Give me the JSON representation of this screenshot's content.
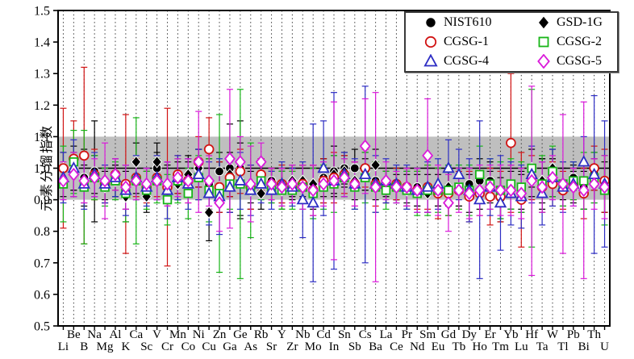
{
  "figure": {
    "type_label": "scatter-with-error-bars",
    "background": "#ffffff"
  },
  "chart_data": {
    "type": "scatter",
    "title": "",
    "xlabel": "",
    "ylabel": "元素分馏指数",
    "ylim": [
      0.5,
      1.5
    ],
    "yticks": [
      "0.5",
      "0.6",
      "0.7",
      "0.8",
      "0.9",
      "1.0",
      "1.1",
      "1.2",
      "1.3",
      "1.4",
      "1.5"
    ],
    "grid": "vertical-dotted",
    "reference_band": {
      "from": 0.9,
      "to": 1.1,
      "color": "#bfbfbf"
    },
    "reference_line": {
      "value": 1.0,
      "color": "#000000"
    },
    "legend_position": "top-right",
    "categories": [
      "Li",
      "Be",
      "B",
      "Na",
      "Mg",
      "Al",
      "K",
      "Ca",
      "Sc",
      "V",
      "Cr",
      "Mn",
      "Co",
      "Ni",
      "Cu",
      "Zn",
      "Ga",
      "Ge",
      "As",
      "Rb",
      "Sr",
      "Y",
      "Zr",
      "Nb",
      "Mo",
      "Cd",
      "In",
      "Sn",
      "Sb",
      "Cs",
      "Ba",
      "La",
      "Ce",
      "Pr",
      "Nd",
      "Sm",
      "Eu",
      "Gd",
      "Tb",
      "Dy",
      "Ho",
      "Er",
      "Tm",
      "Yb",
      "Lu",
      "Hf",
      "Ta",
      "W",
      "Tl",
      "Pb",
      "Bi",
      "Th",
      "U"
    ],
    "series": [
      {
        "name": "NIST610",
        "marker": "circle",
        "fill": "filled",
        "color": "#000000",
        "values": [
          0.96,
          0.99,
          0.97,
          0.99,
          0.95,
          0.97,
          0.94,
          0.97,
          0.95,
          1.0,
          0.95,
          0.97,
          0.97,
          1.0,
          0.95,
          0.99,
          1.0,
          1.0,
          0.95,
          0.98,
          0.96,
          0.94,
          0.95,
          0.95,
          0.94,
          0.97,
          0.99,
          1.0,
          1.0,
          0.98,
          0.96,
          0.95,
          0.95,
          0.94,
          0.94,
          0.93,
          0.94,
          0.93,
          0.94,
          0.95,
          0.96,
          0.96,
          0.92,
          0.94,
          0.93,
          0.96,
          0.95,
          0.97,
          0.95,
          0.97,
          0.94,
          0.99,
          0.95
        ],
        "errors": [
          0.05,
          0.06,
          0.09,
          0.16,
          0.05,
          0.04,
          0.07,
          0.05,
          0.04,
          0.05,
          0.06,
          0.05,
          0.05,
          0.06,
          0.08,
          0.06,
          0.14,
          0.15,
          0.06,
          0.05,
          0.04,
          0.05,
          0.05,
          0.06,
          0.07,
          0.06,
          0.08,
          0.05,
          0.06,
          0.05,
          0.06,
          0.04,
          0.05,
          0.05,
          0.06,
          0.07,
          0.06,
          0.08,
          0.06,
          0.05,
          0.07,
          0.06,
          0.08,
          0.07,
          0.06,
          0.05,
          0.08,
          0.06,
          0.05,
          0.04,
          0.07,
          0.06,
          0.09
        ]
      },
      {
        "name": "GSD-1G",
        "marker": "diamond",
        "fill": "filled",
        "color": "#000000",
        "values": [
          1.0,
          1.0,
          0.95,
          0.98,
          0.94,
          0.96,
          0.91,
          1.02,
          0.91,
          1.02,
          0.95,
          0.95,
          0.98,
          1.0,
          0.86,
          0.94,
          0.98,
          0.96,
          0.93,
          0.92,
          0.94,
          0.93,
          0.96,
          0.96,
          0.95,
          0.96,
          0.98,
          0.99,
          0.96,
          0.99,
          1.01,
          0.94,
          0.94,
          0.93,
          0.93,
          0.92,
          0.93,
          0.94,
          0.93,
          0.92,
          0.93,
          0.94,
          0.9,
          0.93,
          0.92,
          1.0,
          0.96,
          1.0,
          0.94,
          0.94,
          0.93,
          0.96,
          0.94
        ],
        "errors": [
          0.05,
          0.07,
          0.06,
          0.06,
          0.05,
          0.05,
          0.08,
          0.06,
          0.05,
          0.06,
          0.07,
          0.05,
          0.06,
          0.06,
          0.09,
          0.08,
          0.07,
          0.12,
          0.06,
          0.05,
          0.05,
          0.06,
          0.05,
          0.05,
          0.06,
          0.07,
          0.06,
          0.05,
          0.06,
          0.06,
          0.05,
          0.05,
          0.04,
          0.05,
          0.05,
          0.06,
          0.05,
          0.06,
          0.05,
          0.06,
          0.06,
          0.05,
          0.07,
          0.06,
          0.06,
          0.06,
          0.07,
          0.06,
          0.06,
          0.05,
          0.06,
          0.07,
          0.08
        ]
      },
      {
        "name": "CGSG-1",
        "marker": "circle",
        "fill": "open",
        "color": "#d11313",
        "values": [
          1.0,
          1.03,
          1.04,
          0.98,
          0.95,
          0.98,
          0.95,
          0.97,
          0.94,
          0.97,
          0.94,
          0.98,
          0.96,
          1.02,
          1.06,
          0.94,
          0.97,
          0.99,
          0.94,
          0.98,
          0.95,
          0.95,
          0.94,
          0.95,
          0.93,
          0.96,
          0.97,
          0.98,
          0.95,
          1.0,
          0.95,
          0.94,
          0.95,
          0.94,
          0.93,
          0.94,
          0.92,
          0.92,
          0.93,
          0.91,
          0.92,
          0.91,
          0.91,
          1.08,
          0.9,
          0.97,
          0.94,
          0.95,
          0.93,
          0.95,
          0.92,
          1.0,
          0.96
        ],
        "errors": [
          0.19,
          0.12,
          0.28,
          0.08,
          0.06,
          0.05,
          0.22,
          0.06,
          0.05,
          0.06,
          0.25,
          0.06,
          0.07,
          0.08,
          0.1,
          0.08,
          0.06,
          0.07,
          0.07,
          0.05,
          0.05,
          0.06,
          0.05,
          0.06,
          0.08,
          0.07,
          0.08,
          0.06,
          0.07,
          0.06,
          0.07,
          0.05,
          0.05,
          0.06,
          0.06,
          0.07,
          0.08,
          0.07,
          0.06,
          0.08,
          0.07,
          0.09,
          0.08,
          0.22,
          0.15,
          0.07,
          0.08,
          0.07,
          0.06,
          0.05,
          0.08,
          0.07,
          0.1
        ]
      },
      {
        "name": "CGSG-2",
        "marker": "square",
        "fill": "open",
        "color": "#17b517",
        "values": [
          0.95,
          1.02,
          0.94,
          0.97,
          0.94,
          0.96,
          0.92,
          0.96,
          0.93,
          0.96,
          0.9,
          0.96,
          0.92,
          0.97,
          0.93,
          0.92,
          0.95,
          0.95,
          0.93,
          0.96,
          0.94,
          0.93,
          0.93,
          0.94,
          0.92,
          0.94,
          0.95,
          0.97,
          0.94,
          0.97,
          0.94,
          0.93,
          0.94,
          0.93,
          0.92,
          0.93,
          0.93,
          0.93,
          0.94,
          0.93,
          0.98,
          0.95,
          0.93,
          0.95,
          0.94,
          1.0,
          0.95,
          0.99,
          0.95,
          0.96,
          0.96,
          0.97,
          0.93
        ],
        "errors": [
          0.12,
          0.1,
          0.18,
          0.07,
          0.06,
          0.06,
          0.09,
          0.2,
          0.06,
          0.07,
          0.08,
          0.07,
          0.08,
          0.07,
          0.1,
          0.25,
          0.08,
          0.3,
          0.15,
          0.06,
          0.05,
          0.06,
          0.06,
          0.07,
          0.08,
          0.07,
          0.09,
          0.06,
          0.07,
          0.08,
          0.08,
          0.06,
          0.05,
          0.06,
          0.07,
          0.08,
          0.07,
          0.08,
          0.07,
          0.08,
          0.09,
          0.08,
          0.09,
          0.08,
          0.08,
          0.25,
          0.09,
          0.08,
          0.07,
          0.06,
          0.09,
          0.08,
          0.11
        ]
      },
      {
        "name": "CGSG-4",
        "marker": "triangle",
        "fill": "open",
        "color": "#2d2dc4",
        "values": [
          0.97,
          1.0,
          0.95,
          0.98,
          0.95,
          0.97,
          0.93,
          0.97,
          0.94,
          0.97,
          0.93,
          0.97,
          0.95,
          0.98,
          0.92,
          0.91,
          0.94,
          0.96,
          0.93,
          0.95,
          0.93,
          0.95,
          0.94,
          0.9,
          0.89,
          1.0,
          0.96,
          0.98,
          0.95,
          0.98,
          0.95,
          0.96,
          0.95,
          0.94,
          0.93,
          0.94,
          0.95,
          1.0,
          0.98,
          0.93,
          0.9,
          0.94,
          0.89,
          0.92,
          0.91,
          0.98,
          0.92,
          0.97,
          0.94,
          0.95,
          1.02,
          0.98,
          0.95
        ],
        "errors": [
          0.08,
          0.09,
          0.08,
          0.07,
          0.06,
          0.06,
          0.08,
          0.07,
          0.06,
          0.07,
          0.09,
          0.07,
          0.08,
          0.08,
          0.1,
          0.12,
          0.08,
          0.09,
          0.08,
          0.06,
          0.06,
          0.07,
          0.06,
          0.12,
          0.25,
          0.15,
          0.28,
          0.07,
          0.08,
          0.28,
          0.09,
          0.07,
          0.06,
          0.07,
          0.07,
          0.08,
          0.08,
          0.09,
          0.08,
          0.1,
          0.25,
          0.09,
          0.15,
          0.1,
          0.1,
          0.09,
          0.1,
          0.09,
          0.08,
          0.07,
          0.08,
          0.25,
          0.2
        ]
      },
      {
        "name": "CGSG-5",
        "marker": "diamond",
        "fill": "open",
        "color": "#da1ada",
        "values": [
          0.96,
          0.98,
          0.96,
          0.97,
          0.96,
          0.98,
          0.94,
          0.96,
          0.95,
          0.96,
          0.95,
          0.97,
          0.96,
          1.02,
          0.96,
          0.89,
          1.03,
          1.02,
          0.95,
          1.02,
          0.95,
          0.94,
          0.95,
          0.94,
          0.93,
          0.95,
          0.96,
          0.97,
          0.95,
          1.07,
          0.94,
          0.96,
          0.94,
          0.94,
          0.93,
          1.04,
          0.93,
          0.89,
          0.93,
          0.92,
          0.93,
          0.94,
          0.93,
          0.93,
          0.92,
          0.96,
          0.94,
          0.97,
          0.95,
          0.94,
          0.93,
          0.95,
          0.94
        ],
        "errors": [
          0.06,
          0.07,
          0.07,
          0.06,
          0.12,
          0.05,
          0.07,
          0.06,
          0.05,
          0.06,
          0.07,
          0.06,
          0.07,
          0.16,
          0.08,
          0.09,
          0.22,
          0.08,
          0.12,
          0.06,
          0.05,
          0.06,
          0.06,
          0.07,
          0.08,
          0.07,
          0.25,
          0.06,
          0.07,
          0.15,
          0.3,
          0.06,
          0.05,
          0.06,
          0.07,
          0.18,
          0.08,
          0.09,
          0.07,
          0.08,
          0.08,
          0.07,
          0.08,
          0.08,
          0.08,
          0.3,
          0.08,
          0.07,
          0.22,
          0.06,
          0.28,
          0.08,
          0.1
        ]
      }
    ]
  }
}
